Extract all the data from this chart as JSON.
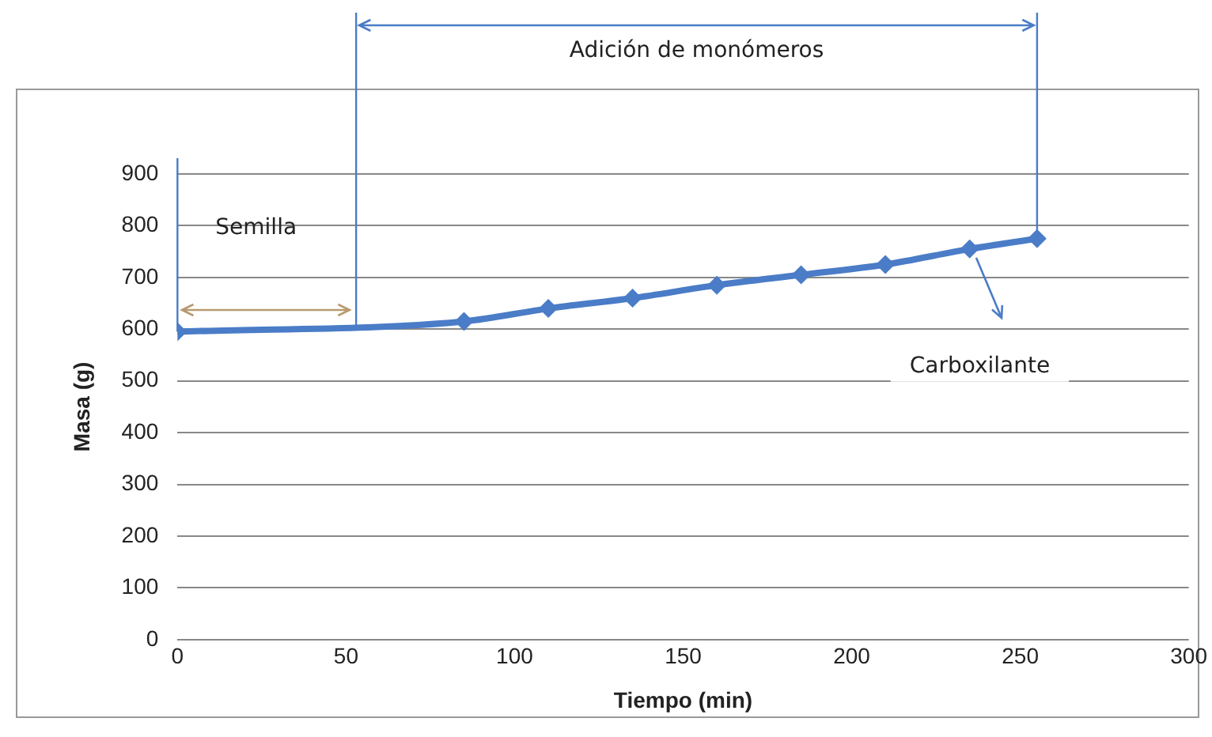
{
  "chart_data": {
    "type": "line",
    "xlabel": "Tiempo (min)",
    "ylabel": "Masa (g)",
    "x": [
      0,
      85,
      110,
      135,
      160,
      185,
      210,
      235,
      255
    ],
    "series": [
      {
        "color": "#4a7cc7",
        "values": [
          595,
          615,
          640,
          660,
          685,
          705,
          725,
          755,
          775
        ]
      }
    ],
    "xlim": [
      0,
      300
    ],
    "xticks": [
      0,
      50,
      100,
      150,
      200,
      250,
      300
    ],
    "ylim": [
      0,
      900
    ],
    "yticks": [
      0,
      100,
      200,
      300,
      400,
      500,
      600,
      700,
      800,
      900
    ],
    "grid": "y",
    "legend": false,
    "marker": "diamond",
    "line_style": "solid",
    "ref_lines": [
      {
        "axis": "x",
        "value": 0,
        "color": "#4a7cc7"
      },
      {
        "axis": "x",
        "value": 53,
        "color": "#4a7cc7"
      },
      {
        "axis": "x",
        "value": 255,
        "color": "#4a7cc7"
      }
    ],
    "annotations": [
      "Adición de monómeros",
      "Semilla",
      "Carboxilante"
    ]
  }
}
